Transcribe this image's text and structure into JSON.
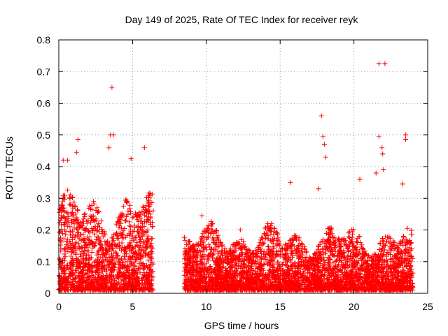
{
  "chart_data": {
    "type": "scatter",
    "title": "Day 149 of 2025, Rate Of TEC Index for receiver reyk",
    "xlabel": "GPS time / hours",
    "ylabel": "ROTI / TECUs",
    "xlim": [
      0,
      25
    ],
    "ylim": [
      0,
      0.8
    ],
    "xticks": [
      0,
      5,
      10,
      15,
      20,
      25
    ],
    "yticks": [
      0,
      0.1,
      0.2,
      0.3,
      0.4,
      0.5,
      0.6,
      0.7,
      0.8
    ],
    "grid": true,
    "marker": "+",
    "color": "#ff0000",
    "series": [
      {
        "name": "ROTI",
        "segments": [
          {
            "x_start": 0.0,
            "x_end": 6.4,
            "typical_low": 0.01,
            "typical_high": 0.3
          },
          {
            "x_start": 8.5,
            "x_end": 24.0,
            "typical_low": 0.01,
            "typical_high": 0.2
          }
        ],
        "notable_points": [
          {
            "x": 3.6,
            "y": 0.65
          },
          {
            "x": 21.7,
            "y": 0.725
          },
          {
            "x": 22.1,
            "y": 0.725
          },
          {
            "x": 17.8,
            "y": 0.56
          },
          {
            "x": 3.5,
            "y": 0.5
          },
          {
            "x": 3.7,
            "y": 0.5
          },
          {
            "x": 23.5,
            "y": 0.5
          },
          {
            "x": 23.5,
            "y": 0.485
          },
          {
            "x": 21.7,
            "y": 0.495
          },
          {
            "x": 17.9,
            "y": 0.495
          },
          {
            "x": 1.3,
            "y": 0.485
          },
          {
            "x": 5.8,
            "y": 0.46
          },
          {
            "x": 21.9,
            "y": 0.46
          },
          {
            "x": 21.95,
            "y": 0.44
          },
          {
            "x": 18.0,
            "y": 0.47
          },
          {
            "x": 3.4,
            "y": 0.46
          },
          {
            "x": 0.3,
            "y": 0.42
          },
          {
            "x": 0.6,
            "y": 0.42
          },
          {
            "x": 4.9,
            "y": 0.425
          },
          {
            "x": 1.2,
            "y": 0.445
          },
          {
            "x": 18.1,
            "y": 0.43
          },
          {
            "x": 22.0,
            "y": 0.39
          },
          {
            "x": 21.5,
            "y": 0.38
          },
          {
            "x": 20.4,
            "y": 0.36
          },
          {
            "x": 23.3,
            "y": 0.345
          },
          {
            "x": 15.7,
            "y": 0.35
          },
          {
            "x": 9.7,
            "y": 0.245
          },
          {
            "x": 12.3,
            "y": 0.2
          },
          {
            "x": 17.6,
            "y": 0.33
          }
        ]
      }
    ]
  }
}
